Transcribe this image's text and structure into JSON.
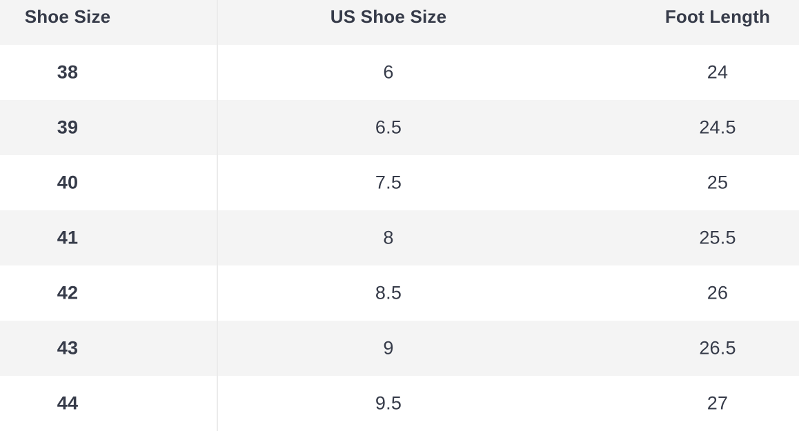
{
  "table": {
    "columns": [
      {
        "label": "Shoe Size"
      },
      {
        "label": "US Shoe Size"
      },
      {
        "label": "Foot Length"
      }
    ],
    "rows": [
      [
        "38",
        "6",
        "24"
      ],
      [
        "39",
        "6.5",
        "24.5"
      ],
      [
        "40",
        "7.5",
        "25"
      ],
      [
        "41",
        "8",
        "25.5"
      ],
      [
        "42",
        "8.5",
        "26"
      ],
      [
        "43",
        "9",
        "26.5"
      ],
      [
        "44",
        "9.5",
        "27"
      ]
    ]
  },
  "colors": {
    "header_bg": "#f4f4f4",
    "row_bg": "#ffffff",
    "row_alt_bg": "#f4f4f4",
    "text": "#363b49",
    "divider": "#ebebeb"
  },
  "chart_data": {
    "type": "table",
    "columns": [
      "Shoe Size",
      "US Shoe Size",
      "Foot Length"
    ],
    "rows": [
      [
        "38",
        "6",
        "24"
      ],
      [
        "39",
        "6.5",
        "24.5"
      ],
      [
        "40",
        "7.5",
        "25"
      ],
      [
        "41",
        "8",
        "25.5"
      ],
      [
        "42",
        "8.5",
        "26"
      ],
      [
        "43",
        "9",
        "26.5"
      ],
      [
        "44",
        "9.5",
        "27"
      ]
    ]
  }
}
